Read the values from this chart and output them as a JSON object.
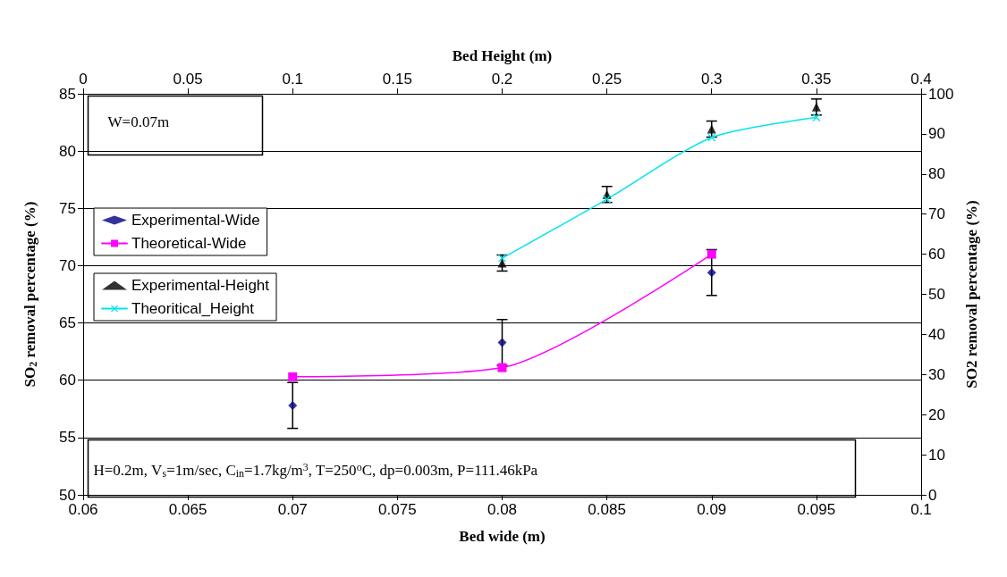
{
  "chart_data": [
    {
      "type": "scatter",
      "xlabel": "Bed wide (m)",
      "ylabel": "SO$_{2}$ removal percentage (%)",
      "xlim": [
        0.06,
        0.1
      ],
      "xticks": [
        0.06,
        0.065,
        0.07,
        0.075,
        0.08,
        0.085,
        0.09,
        0.095,
        0.1
      ],
      "ylim": [
        50,
        85
      ],
      "yticks": [
        50,
        55,
        60,
        65,
        70,
        75,
        80,
        85
      ],
      "grid": "y",
      "legend": "left",
      "series": [
        {
          "name": "Experimental-Wide",
          "marker": "diamond",
          "color": "#000080",
          "x": [
            0.07,
            0.08,
            0.09
          ],
          "values": [
            57.8,
            63.3,
            69.4
          ],
          "errors": [
            2,
            2,
            2
          ]
        },
        {
          "name": "Theoretical-Wide",
          "type": "line",
          "marker": "square",
          "color": "#ff00ff",
          "x": [
            0.07,
            0.08,
            0.09
          ],
          "values": [
            60.3,
            61.1,
            71.0
          ]
        }
      ],
      "annotations": [
        "W=0.07m",
        "H=0.2m, V$_{s}$=1m/sec, C$_{in}$=1.7kg/m$^{3}$, T=250$^{o}$C, dp=0.003m, P=111.46kPa"
      ]
    },
    {
      "type": "scatter",
      "xlabel": "Bed Height (m)",
      "ylabel": "SO2 removal percentage (%)",
      "xlim": [
        0,
        0.4
      ],
      "xticks": [
        0,
        0.05,
        0.1,
        0.15,
        0.2,
        0.25,
        0.3,
        0.35,
        0.4
      ],
      "ylim": [
        0,
        100
      ],
      "yticks": [
        0,
        10,
        20,
        30,
        40,
        50,
        60,
        70,
        80,
        90,
        100
      ],
      "legend": "left",
      "series": [
        {
          "name": "Experimental-Height",
          "marker": "triangle",
          "color": "#000000",
          "x": [
            0.2,
            0.25,
            0.3,
            0.35
          ],
          "values": [
            57.8,
            74.9,
            91.2,
            96.7
          ],
          "errors": [
            2,
            2,
            2,
            2
          ]
        },
        {
          "name": "Theoritical_Height",
          "type": "line",
          "marker": "cross",
          "color": "#00e5ee",
          "x": [
            0.2,
            0.25,
            0.3,
            0.35
          ],
          "values": [
            59.0,
            73.7,
            89.1,
            94.1
          ]
        }
      ]
    }
  ]
}
